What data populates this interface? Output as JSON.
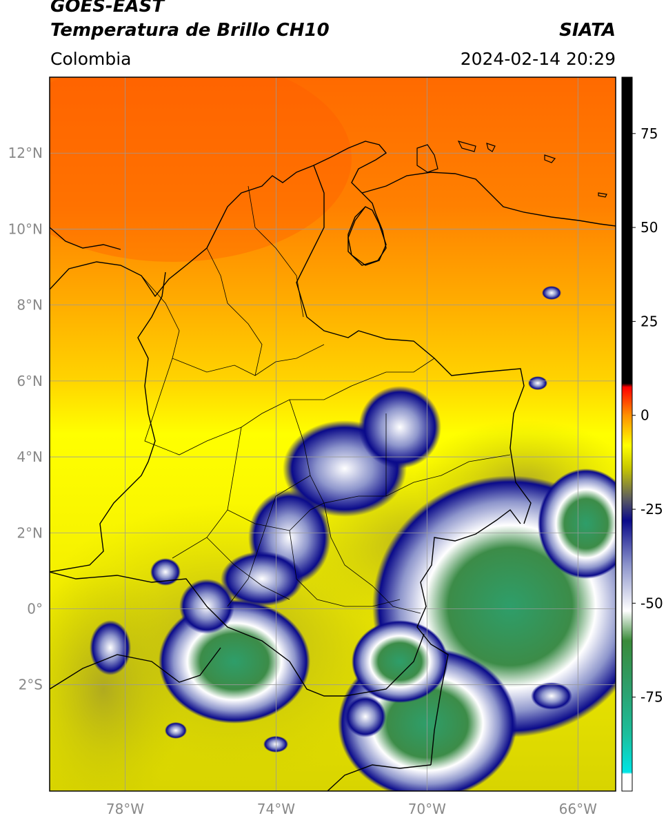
{
  "header": {
    "satellite": "GOES-EAST",
    "product": "Temperatura de Brillo CH10",
    "region": "Colombia",
    "agency": "SIATA",
    "datetime": "2024-02-14 20:29"
  },
  "map": {
    "lon_range": [
      -80,
      -65
    ],
    "lat_range": [
      -4.8,
      14
    ],
    "lon_ticks": [
      {
        "value": -78,
        "label": "78°W"
      },
      {
        "value": -74,
        "label": "74°W"
      },
      {
        "value": -70,
        "label": "70°W"
      },
      {
        "value": -66,
        "label": "66°W"
      }
    ],
    "lat_ticks": [
      {
        "value": 12,
        "label": "12°N"
      },
      {
        "value": 10,
        "label": "10°N"
      },
      {
        "value": 8,
        "label": "8°N"
      },
      {
        "value": 6,
        "label": "6°N"
      },
      {
        "value": 4,
        "label": "4°N"
      },
      {
        "value": 2,
        "label": "2°N"
      },
      {
        "value": 0,
        "label": "0°"
      },
      {
        "value": -2,
        "label": "2°S"
      }
    ],
    "grid": true
  },
  "colorbar": {
    "range": [
      -100,
      90
    ],
    "ticks": [
      {
        "value": 75,
        "label": "75"
      },
      {
        "value": 50,
        "label": "50"
      },
      {
        "value": 25,
        "label": "25"
      },
      {
        "value": 0,
        "label": "0"
      },
      {
        "value": -25,
        "label": "-25"
      },
      {
        "value": -50,
        "label": "-50"
      },
      {
        "value": -75,
        "label": "-75"
      }
    ],
    "stops": [
      {
        "value": -100,
        "color": "#ffffff"
      },
      {
        "value": -95.5,
        "color": "#ffffff"
      },
      {
        "value": -95,
        "color": "#00e5e5"
      },
      {
        "value": -85,
        "color": "#1bbf9d"
      },
      {
        "value": -72,
        "color": "#2e9e6a"
      },
      {
        "value": -60,
        "color": "#3a8a3a"
      },
      {
        "value": -52,
        "color": "#ffffff"
      },
      {
        "value": -40,
        "color": "#8e96cc"
      },
      {
        "value": -28,
        "color": "#0a0a8a"
      },
      {
        "value": -22,
        "color": "#5e5e5e"
      },
      {
        "value": -14,
        "color": "#c8c800"
      },
      {
        "value": -8,
        "color": "#ffff00"
      },
      {
        "value": 0,
        "color": "#ff9000"
      },
      {
        "value": 7.5,
        "color": "#ff0000"
      },
      {
        "value": 8.5,
        "color": "#000000"
      },
      {
        "value": 90,
        "color": "#000000"
      }
    ]
  }
}
